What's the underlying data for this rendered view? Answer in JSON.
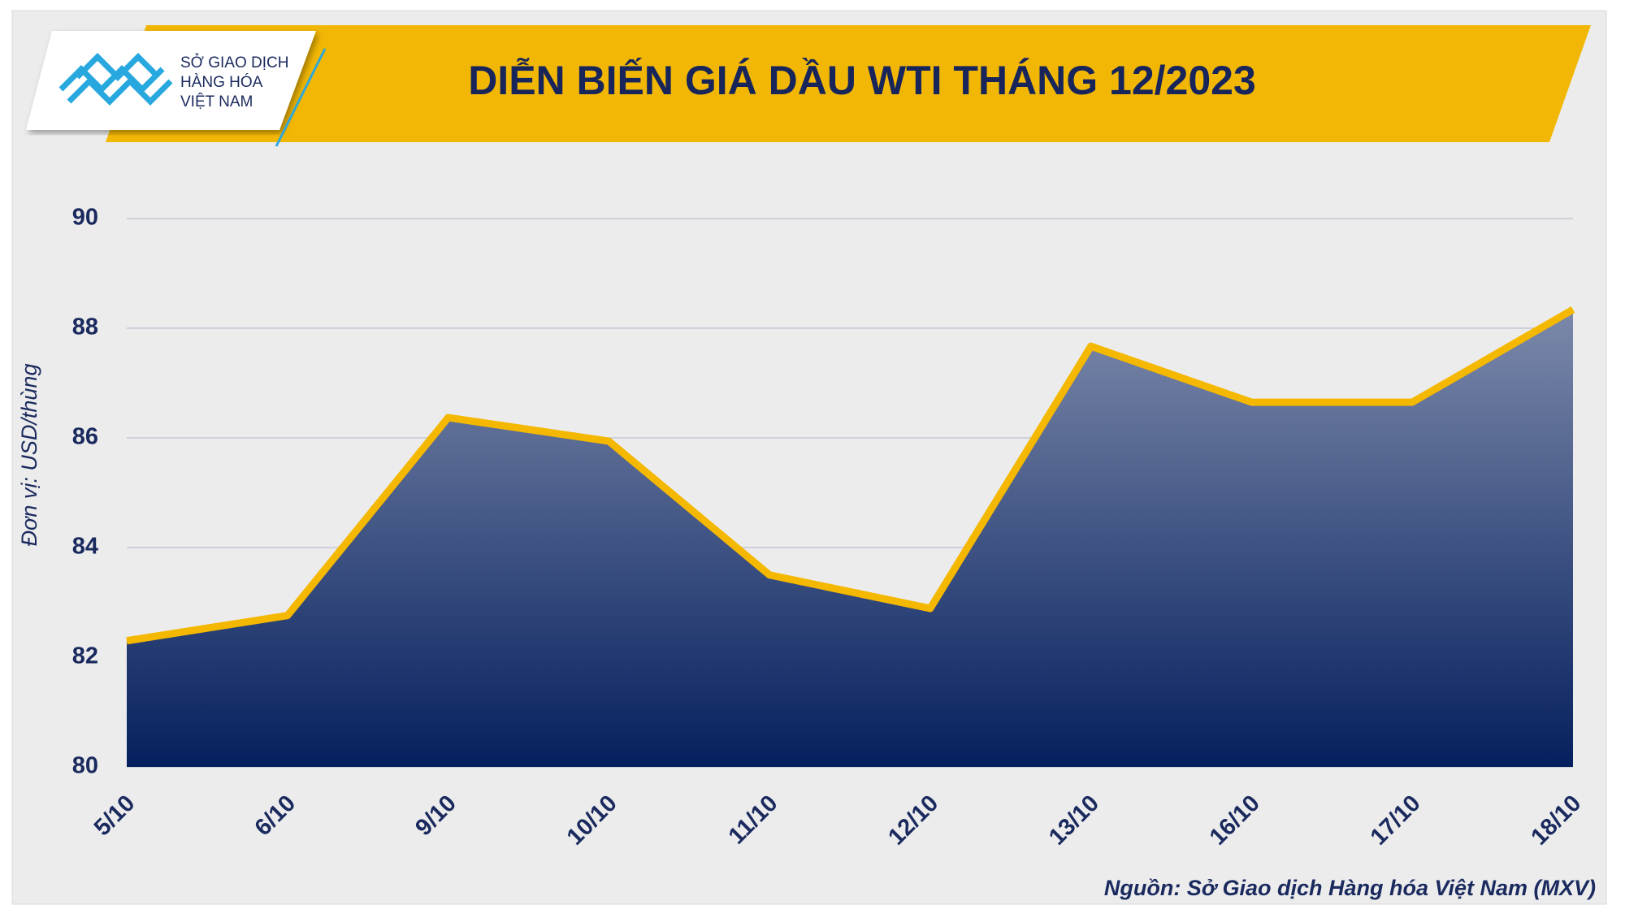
{
  "logo": {
    "lines": [
      "SỞ GIAO DỊCH",
      "HÀNG HÓA",
      "VIỆT NAM"
    ]
  },
  "chart_data": {
    "type": "area",
    "title": "DIỄN BIẾN GIÁ DẦU WTI THÁNG 12/2023",
    "y_label": "Đơn vị: USD/thùng",
    "source": "Nguồn: Sở Giao dịch Hàng hóa Việt Nam (MXV)",
    "categories": [
      "5/10",
      "6/10",
      "9/10",
      "10/10",
      "11/10",
      "12/10",
      "13/10",
      "16/10",
      "17/10",
      "18/10"
    ],
    "values": [
      82.3,
      82.76,
      86.37,
      85.94,
      83.5,
      82.89,
      87.67,
      86.65,
      86.65,
      88.34
    ],
    "line_color": "#f5b800",
    "fill_top": "#7c89aa",
    "fill_bottom": "#05205e",
    "ylim": [
      80,
      90
    ],
    "yticks": [
      80,
      82,
      84,
      86,
      88,
      90
    ],
    "grid": true
  }
}
